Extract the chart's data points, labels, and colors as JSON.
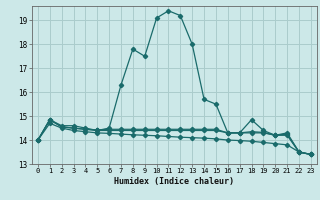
{
  "xlabel": "Humidex (Indice chaleur)",
  "background_color": "#cce8e8",
  "grid_color": "#aacccc",
  "line_color": "#1a6b6b",
  "xlim": [
    -0.5,
    23.5
  ],
  "ylim": [
    13.0,
    19.6
  ],
  "yticks": [
    13,
    14,
    15,
    16,
    17,
    18,
    19
  ],
  "xticks": [
    0,
    1,
    2,
    3,
    4,
    5,
    6,
    7,
    8,
    9,
    10,
    11,
    12,
    13,
    14,
    15,
    16,
    17,
    18,
    19,
    20,
    21,
    22,
    23
  ],
  "line1_x": [
    0,
    1,
    2,
    3,
    4,
    5,
    6,
    7,
    8,
    9,
    10,
    11,
    12,
    13,
    14,
    15,
    16,
    17,
    18,
    19,
    20,
    21,
    22,
    23
  ],
  "line1_y": [
    14.0,
    14.85,
    14.6,
    14.6,
    14.5,
    14.4,
    14.5,
    16.3,
    17.8,
    17.5,
    19.1,
    19.4,
    19.2,
    18.0,
    15.7,
    15.5,
    14.3,
    14.3,
    14.85,
    14.4,
    14.2,
    14.3,
    13.5,
    13.4
  ],
  "line2_x": [
    0,
    1,
    2,
    3,
    4,
    5,
    6,
    7,
    8,
    9,
    10,
    11,
    12,
    13,
    14,
    15,
    16,
    17,
    18,
    19,
    20,
    21,
    22,
    23
  ],
  "line2_y": [
    14.0,
    14.85,
    14.55,
    14.5,
    14.45,
    14.4,
    14.4,
    14.4,
    14.4,
    14.4,
    14.4,
    14.4,
    14.4,
    14.4,
    14.4,
    14.4,
    14.3,
    14.3,
    14.3,
    14.3,
    14.2,
    14.2,
    13.5,
    13.4
  ],
  "line3_x": [
    0,
    1,
    2,
    3,
    4,
    5,
    6,
    7,
    8,
    9,
    10,
    11,
    12,
    13,
    14,
    15,
    16,
    17,
    18,
    19,
    20,
    21,
    22,
    23
  ],
  "line3_y": [
    14.0,
    14.85,
    14.55,
    14.5,
    14.45,
    14.42,
    14.45,
    14.45,
    14.45,
    14.45,
    14.45,
    14.45,
    14.45,
    14.45,
    14.45,
    14.45,
    14.3,
    14.3,
    14.35,
    14.32,
    14.2,
    14.25,
    13.5,
    13.4
  ],
  "line4_x": [
    0,
    1,
    2,
    3,
    4,
    5,
    6,
    7,
    8,
    9,
    10,
    11,
    12,
    13,
    14,
    15,
    16,
    17,
    18,
    19,
    20,
    21,
    22,
    23
  ],
  "line4_y": [
    14.0,
    14.7,
    14.5,
    14.4,
    14.35,
    14.3,
    14.28,
    14.25,
    14.22,
    14.2,
    14.18,
    14.15,
    14.12,
    14.1,
    14.08,
    14.05,
    14.0,
    13.98,
    13.95,
    13.9,
    13.85,
    13.8,
    13.5,
    13.4
  ]
}
